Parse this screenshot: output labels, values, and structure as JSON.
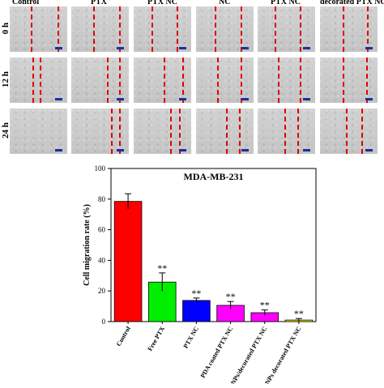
{
  "micrograph_grid": {
    "column_labels": [
      "Control",
      "PTX",
      "PTX NC",
      "NC",
      "PTX NC",
      "decorated PTX NC"
    ],
    "row_labels": [
      "0 h",
      "12 h",
      "24 h"
    ]
  },
  "chart_data": {
    "type": "bar",
    "title": "MDA-MB-231",
    "xlabel": "",
    "ylabel": "Cell migration rate (%)",
    "ylim": [
      0,
      100
    ],
    "yticks": [
      0,
      20,
      40,
      60,
      80,
      100
    ],
    "categories": [
      "Control",
      "Free PTX",
      "PTX NC",
      "PDA coated PTX NC",
      "AgNPs decorated PTX NC",
      "AgNPs decorated PTX NC"
    ],
    "category_labels_shown": [
      "Control",
      "Free PTX",
      "PTX NC",
      "PDA coated PTX NC",
      "AgNPs/decorated PTX NC",
      "AgNPs decorated PTX NC"
    ],
    "values": [
      78.5,
      25.8,
      13.8,
      10.6,
      5.8,
      1.0
    ],
    "errors": [
      5.0,
      6.0,
      1.6,
      2.5,
      1.8,
      1.0
    ],
    "significance": [
      "",
      "**",
      "**",
      "**",
      "**",
      "**"
    ],
    "colors": [
      "#ff0000",
      "#00ee00",
      "#0000ff",
      "#ff00ff",
      "#ff00ff",
      "#ffff00"
    ],
    "grid": false,
    "legend": "none"
  }
}
